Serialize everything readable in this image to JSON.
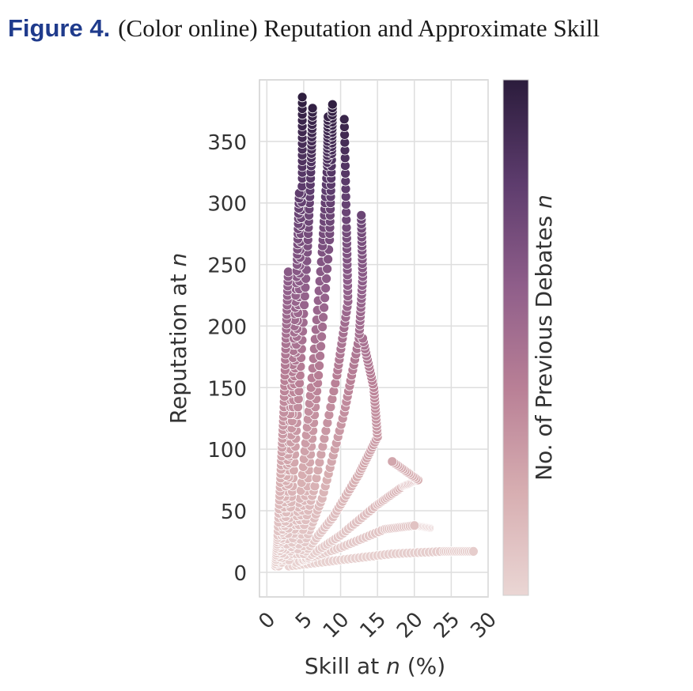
{
  "caption": {
    "label": "Figure 4.",
    "title": "(Color online) Reputation and Approximate Skill"
  },
  "chart_data": {
    "type": "scatter",
    "xlabel": "Skill at n (%)",
    "ylabel": "Reputation at n",
    "colorbar_label": "No. of Previous Debates n",
    "xlim": [
      -1,
      30
    ],
    "ylim": [
      -20,
      400
    ],
    "xticks": [
      0,
      5,
      10,
      15,
      20,
      25,
      30
    ],
    "yticks": [
      0,
      50,
      100,
      150,
      200,
      250,
      300,
      350
    ],
    "grid": true,
    "colormap": [
      "#ead6d4",
      "#d7aeb1",
      "#b98096",
      "#8f5e8a",
      "#5d3c6d",
      "#2b1c3c"
    ],
    "point_edge_color": "#ffffff",
    "trajectories": [
      {
        "points": [
          [
            1.2,
            5
          ],
          [
            1.5,
            30
          ],
          [
            1.9,
            80
          ],
          [
            2.3,
            130
          ],
          [
            2.6,
            190
          ],
          [
            2.9,
            244
          ]
        ]
      },
      {
        "points": [
          [
            1.6,
            5
          ],
          [
            2.2,
            40
          ],
          [
            2.9,
            100
          ],
          [
            3.6,
            180
          ],
          [
            4.1,
            250
          ],
          [
            4.4,
            308
          ]
        ]
      },
      {
        "points": [
          [
            2.0,
            8
          ],
          [
            2.8,
            60
          ],
          [
            3.6,
            140
          ],
          [
            4.4,
            230
          ],
          [
            4.8,
            320
          ],
          [
            4.8,
            386
          ]
        ]
      },
      {
        "points": [
          [
            2.5,
            10
          ],
          [
            3.5,
            70
          ],
          [
            4.5,
            160
          ],
          [
            5.5,
            260
          ],
          [
            6.0,
            330
          ],
          [
            6.2,
            377
          ]
        ]
      },
      {
        "points": [
          [
            3.0,
            10
          ],
          [
            4.5,
            60
          ],
          [
            6.0,
            150
          ],
          [
            7.5,
            260
          ],
          [
            8.2,
            330
          ],
          [
            8.3,
            370
          ]
        ]
      },
      {
        "points": [
          [
            3.5,
            15
          ],
          [
            5.5,
            70
          ],
          [
            7.0,
            160
          ],
          [
            8.5,
            270
          ],
          [
            8.8,
            340
          ],
          [
            8.9,
            380
          ]
        ]
      },
      {
        "points": [
          [
            4.0,
            15
          ],
          [
            6.5,
            70
          ],
          [
            9.5,
            160
          ],
          [
            11.0,
            220
          ],
          [
            10.8,
            280
          ],
          [
            10.5,
            368
          ]
        ]
      },
      {
        "points": [
          [
            4.5,
            15
          ],
          [
            7.5,
            60
          ],
          [
            10.5,
            130
          ],
          [
            12.5,
            190
          ],
          [
            13.0,
            240
          ],
          [
            12.8,
            290
          ]
        ]
      },
      {
        "points": [
          [
            5.0,
            15
          ],
          [
            9.0,
            45
          ],
          [
            12.5,
            80
          ],
          [
            15.0,
            110
          ],
          [
            14.5,
            150
          ],
          [
            13.0,
            190
          ]
        ]
      },
      {
        "points": [
          [
            5.0,
            10
          ],
          [
            10.0,
            30
          ],
          [
            15.0,
            55
          ],
          [
            18.5,
            70
          ],
          [
            20.5,
            75
          ],
          [
            17.0,
            90
          ]
        ]
      },
      {
        "points": [
          [
            4.0,
            8
          ],
          [
            10.0,
            20
          ],
          [
            16.0,
            35
          ],
          [
            20.0,
            38
          ],
          [
            22.0,
            36
          ]
        ]
      },
      {
        "points": [
          [
            3.0,
            5
          ],
          [
            10.0,
            10
          ],
          [
            17.0,
            15
          ],
          [
            24.0,
            17
          ],
          [
            28.0,
            17
          ]
        ]
      }
    ]
  }
}
